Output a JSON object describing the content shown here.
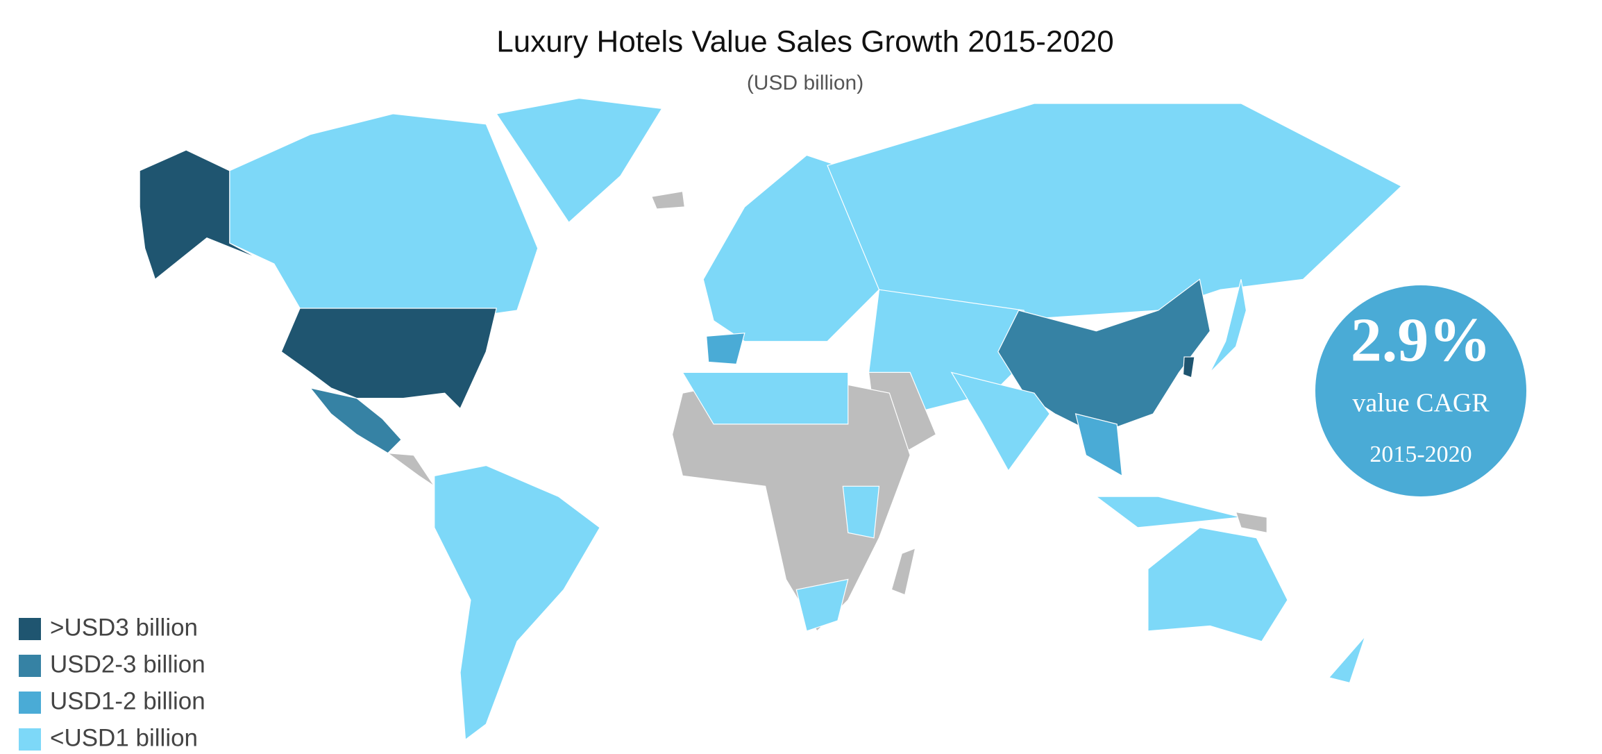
{
  "header": {
    "title": "Luxury Hotels Value Sales Growth 2015-2020",
    "subtitle": "(USD billion)"
  },
  "legend": [
    {
      "label": ">USD3 billion",
      "color": "#1f5570"
    },
    {
      "label": "USD2-3 billion",
      "color": "#3682a4"
    },
    {
      "label": "USD1-2 billion",
      "color": "#4aabd6"
    },
    {
      "label": "<USD1 billion",
      "color": "#7dd8f8"
    }
  ],
  "badge": {
    "value": "2.9%",
    "label": "value CAGR",
    "period": "2015-2020"
  }
}
